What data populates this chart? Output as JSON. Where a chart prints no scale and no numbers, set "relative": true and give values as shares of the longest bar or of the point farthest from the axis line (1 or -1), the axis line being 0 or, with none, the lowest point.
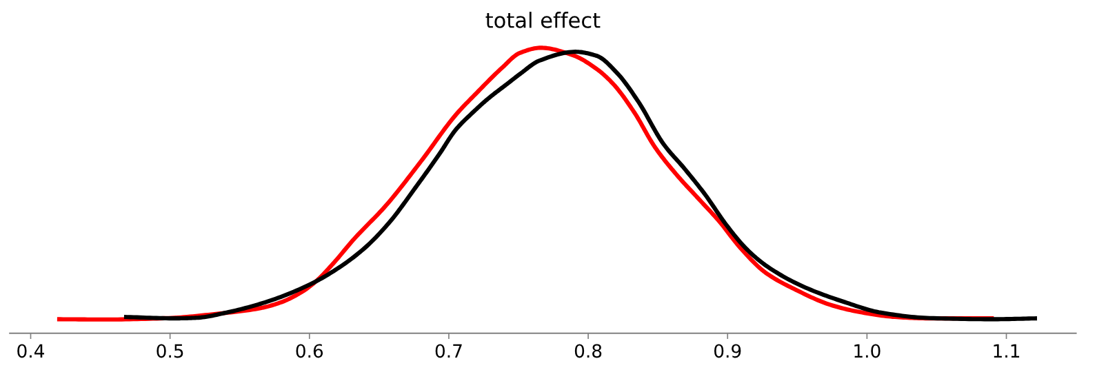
{
  "chart_data": {
    "type": "line",
    "title": "total effect",
    "relative": true,
    "xlim": [
      0.385,
      1.15
    ],
    "xticks": [
      0.4,
      0.5,
      0.6,
      0.7,
      0.8,
      0.9,
      {
        "value": 1,
        "label": "1.0"
      },
      1.1
    ],
    "tick_labels": "x",
    "series": [
      {
        "color": "#ff0000",
        "x": [
          0.419,
          0.454,
          0.499,
          0.534,
          0.565,
          0.58,
          0.595,
          0.605,
          0.617,
          0.632,
          0.655,
          0.68,
          0.705,
          0.72,
          0.738,
          0.751,
          0.766,
          0.789,
          0.806,
          0.818,
          0.833,
          0.848,
          0.864,
          0.879,
          0.894,
          0.909,
          0.927,
          0.949,
          0.974,
          0.995,
          1.02,
          1.045,
          1.091
        ],
        "values": [
          0.049,
          0.048,
          0.053,
          0.068,
          0.088,
          0.109,
          0.146,
          0.183,
          0.244,
          0.33,
          0.448,
          0.602,
          0.765,
          0.842,
          0.929,
          0.982,
          1.0,
          0.974,
          0.926,
          0.873,
          0.774,
          0.651,
          0.552,
          0.472,
          0.392,
          0.3,
          0.213,
          0.152,
          0.099,
          0.074,
          0.057,
          0.052,
          0.052
        ]
      },
      {
        "color": "#000000",
        "x": [
          0.467,
          0.504,
          0.519,
          0.542,
          0.57,
          0.6,
          0.62,
          0.64,
          0.658,
          0.675,
          0.693,
          0.705,
          0.718,
          0.728,
          0.742,
          0.751,
          0.765,
          0.791,
          0.806,
          0.821,
          0.836,
          0.854,
          0.869,
          0.884,
          0.899,
          0.914,
          0.929,
          0.954,
          0.984,
          1.01,
          1.045,
          1.09,
          1.122
        ],
        "values": [
          0.057,
          0.052,
          0.054,
          0.074,
          0.111,
          0.17,
          0.226,
          0.3,
          0.392,
          0.503,
          0.626,
          0.713,
          0.777,
          0.821,
          0.874,
          0.908,
          0.955,
          0.986,
          0.972,
          0.91,
          0.811,
          0.663,
          0.577,
          0.485,
          0.38,
          0.293,
          0.232,
          0.164,
          0.109,
          0.072,
          0.053,
          0.049,
          0.052
        ]
      }
    ]
  }
}
